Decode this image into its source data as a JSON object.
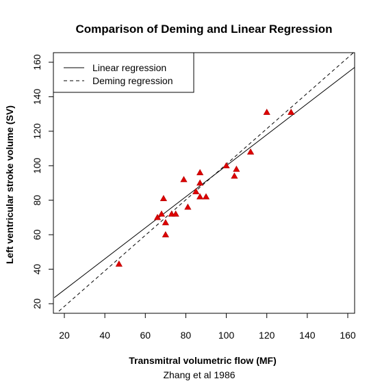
{
  "chart_data": {
    "type": "scatter",
    "title": "Comparison of Deming and Linear Regression",
    "xlabel": "Transmitral volumetric flow (MF)",
    "ylabel": "Left ventricular stroke volume (SV)",
    "subtitle": "Zhang et al 1986",
    "xlim": [
      15,
      165
    ],
    "ylim": [
      15,
      165
    ],
    "xticks": [
      20,
      40,
      60,
      80,
      100,
      120,
      140,
      160
    ],
    "yticks": [
      20,
      40,
      60,
      80,
      100,
      120,
      140,
      160
    ],
    "grid": false,
    "legend_position": "top-left",
    "legend": [
      {
        "label": "Linear regression",
        "linestyle": "solid"
      },
      {
        "label": "Deming regression",
        "linestyle": "dashed"
      }
    ],
    "points_color": "#dd0000",
    "points": [
      {
        "x": 47,
        "y": 43
      },
      {
        "x": 66,
        "y": 70
      },
      {
        "x": 68,
        "y": 72
      },
      {
        "x": 69,
        "y": 81
      },
      {
        "x": 70,
        "y": 60
      },
      {
        "x": 70,
        "y": 67
      },
      {
        "x": 73,
        "y": 72
      },
      {
        "x": 75,
        "y": 72
      },
      {
        "x": 79,
        "y": 92
      },
      {
        "x": 81,
        "y": 76
      },
      {
        "x": 85,
        "y": 85
      },
      {
        "x": 87,
        "y": 96
      },
      {
        "x": 87,
        "y": 90
      },
      {
        "x": 87,
        "y": 82
      },
      {
        "x": 90,
        "y": 82
      },
      {
        "x": 100,
        "y": 100
      },
      {
        "x": 104,
        "y": 94
      },
      {
        "x": 105,
        "y": 98
      },
      {
        "x": 112,
        "y": 108
      },
      {
        "x": 120,
        "y": 131
      },
      {
        "x": 132,
        "y": 131
      }
    ],
    "lines": [
      {
        "name": "Linear regression",
        "style": "solid",
        "x": [
          15,
          165
        ],
        "y": [
          23.5,
          158.5
        ]
      },
      {
        "name": "Deming regression",
        "style": "dashed",
        "x": [
          15,
          165
        ],
        "y": [
          13.3,
          167.8
        ]
      }
    ]
  }
}
